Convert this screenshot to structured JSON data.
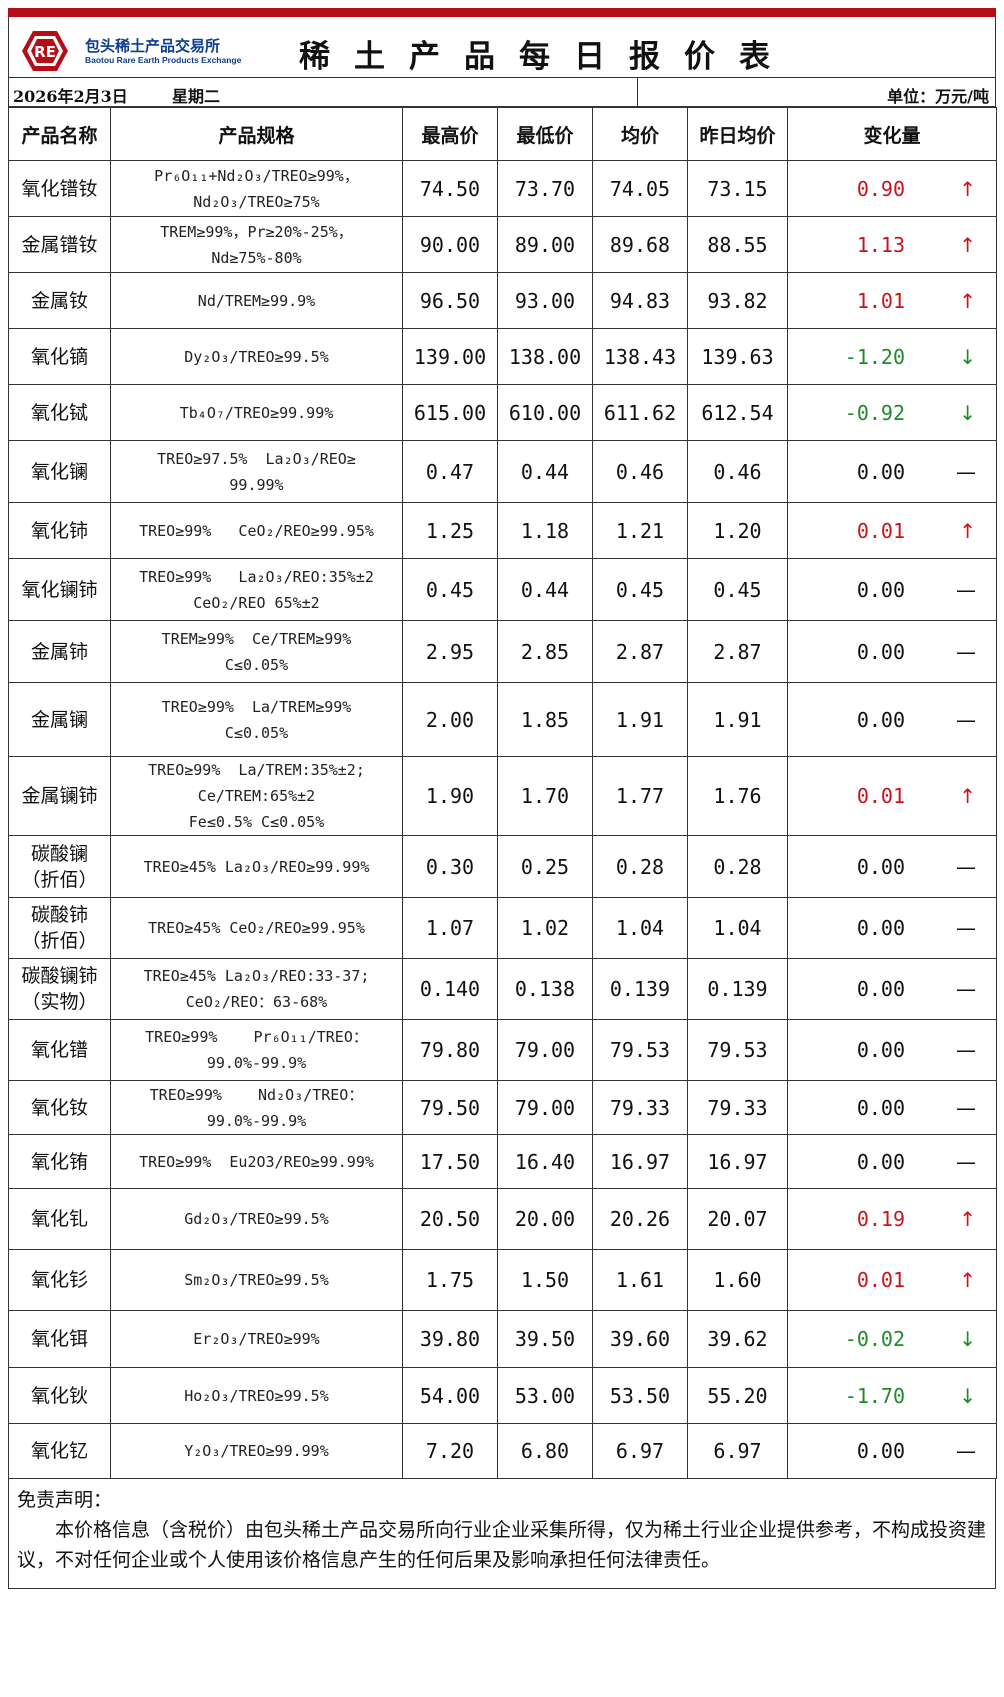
{
  "brand": {
    "logo_text": "RE",
    "name_cn": "包头稀土产品交易所",
    "name_en": "Baotou Rare Earth Products Exchange"
  },
  "title": "稀土产品每日报价表",
  "date": "2026年2月3日",
  "weekday": "星期二",
  "unit": "单位：万元/吨",
  "columns": [
    "产品名称",
    "产品规格",
    "最高价",
    "最低价",
    "均价",
    "昨日均价",
    "变化量"
  ],
  "colors": {
    "up": "#c8141c",
    "down": "#1e8a2a",
    "brand": "#b40f17",
    "brand_text": "#0f3d8c"
  },
  "rows": [
    {
      "name": [
        "氧化镨钕"
      ],
      "spec": [
        "Pr₆O₁₁+Nd₂O₃/TREO≥99%，",
        "Nd₂O₃/TREO≥75%"
      ],
      "high": "74.50",
      "low": "73.70",
      "avg": "74.05",
      "prev": "73.15",
      "change": "0.90",
      "trend": "up",
      "arrow": "↑",
      "h": 56
    },
    {
      "name": [
        "金属镨钕"
      ],
      "spec": [
        "TREM≥99%，Pr≥20%-25%，",
        "Nd≥75%-80%"
      ],
      "high": "90.00",
      "low": "89.00",
      "avg": "89.68",
      "prev": "88.55",
      "change": "1.13",
      "trend": "up",
      "arrow": "↑",
      "h": 56
    },
    {
      "name": [
        "金属钕"
      ],
      "spec": [
        "Nd/TREM≥99.9%"
      ],
      "high": "96.50",
      "low": "93.00",
      "avg": "94.83",
      "prev": "93.82",
      "change": "1.01",
      "trend": "up",
      "arrow": "↑",
      "h": 56
    },
    {
      "name": [
        "氧化镝"
      ],
      "spec": [
        "Dy₂O₃/TREO≥99.5%"
      ],
      "high": "139.00",
      "low": "138.00",
      "avg": "138.43",
      "prev": "139.63",
      "change": "-1.20",
      "trend": "down",
      "arrow": "↓",
      "h": 56
    },
    {
      "name": [
        "氧化铽"
      ],
      "spec": [
        "Tb₄O₇/TREO≥99.99%"
      ],
      "high": "615.00",
      "low": "610.00",
      "avg": "611.62",
      "prev": "612.54",
      "change": "-0.92",
      "trend": "down",
      "arrow": "↓",
      "h": 56
    },
    {
      "name": [
        "氧化镧"
      ],
      "spec": [
        "TREO≥97.5%  La₂O₃/REO≥",
        "99.99%"
      ],
      "high": "0.47",
      "low": "0.44",
      "avg": "0.46",
      "prev": "0.46",
      "change": "0.00",
      "trend": "flat",
      "arrow": "—",
      "h": 62
    },
    {
      "name": [
        "氧化铈"
      ],
      "spec": [
        "TREO≥99%   CeO₂/REO≥99.95%"
      ],
      "high": "1.25",
      "low": "1.18",
      "avg": "1.21",
      "prev": "1.20",
      "change": "0.01",
      "trend": "up",
      "arrow": "↑",
      "h": 56
    },
    {
      "name": [
        "氧化镧铈"
      ],
      "spec": [
        "TREO≥99%   La₂O₃/REO:35%±2",
        "CeO₂/REO 65%±2"
      ],
      "high": "0.45",
      "low": "0.44",
      "avg": "0.45",
      "prev": "0.45",
      "change": "0.00",
      "trend": "flat",
      "arrow": "—",
      "h": 62
    },
    {
      "name": [
        "金属铈"
      ],
      "spec": [
        "TREM≥99%  Ce/TREM≥99%",
        "C≤0.05%"
      ],
      "high": "2.95",
      "low": "2.85",
      "avg": "2.87",
      "prev": "2.87",
      "change": "0.00",
      "trend": "flat",
      "arrow": "—",
      "h": 62
    },
    {
      "name": [
        "金属镧"
      ],
      "spec": [
        "TREO≥99%  La/TREM≥99%",
        "C≤0.05%"
      ],
      "high": "2.00",
      "low": "1.85",
      "avg": "1.91",
      "prev": "1.91",
      "change": "0.00",
      "trend": "flat",
      "arrow": "—",
      "h": 74
    },
    {
      "name": [
        "金属镧铈"
      ],
      "spec": [
        "TREO≥99%  La/TREM:35%±2;",
        "Ce/TREM:65%±2",
        "Fe≤0.5% C≤0.05%"
      ],
      "high": "1.90",
      "low": "1.70",
      "avg": "1.77",
      "prev": "1.76",
      "change": "0.01",
      "trend": "up",
      "arrow": "↑",
      "h": 74
    },
    {
      "name": [
        "碳酸镧",
        "（折佰）"
      ],
      "spec": [
        "TREO≥45% La₂O₃/REO≥99.99%"
      ],
      "high": "0.30",
      "low": "0.25",
      "avg": "0.28",
      "prev": "0.28",
      "change": "0.00",
      "trend": "flat",
      "arrow": "—",
      "h": 62
    },
    {
      "name": [
        "碳酸铈",
        "（折佰）"
      ],
      "spec": [
        "TREO≥45% CeO₂/REO≥99.95%"
      ],
      "high": "1.07",
      "low": "1.02",
      "avg": "1.04",
      "prev": "1.04",
      "change": "0.00",
      "trend": "flat",
      "arrow": "—",
      "h": 61
    },
    {
      "name": [
        "碳酸镧铈",
        "（实物）"
      ],
      "spec": [
        "TREO≥45% La₂O₃/REO:33-37;",
        "CeO₂/REO：63-68%"
      ],
      "high": "0.140",
      "low": "0.138",
      "avg": "0.139",
      "prev": "0.139",
      "change": "0.00",
      "trend": "flat",
      "arrow": "—",
      "h": 61
    },
    {
      "name": [
        "氧化镨"
      ],
      "spec": [
        "TREO≥99%    Pr₆O₁₁/TREO：",
        "99.0%-99.9%"
      ],
      "high": "79.80",
      "low": "79.00",
      "avg": "79.53",
      "prev": "79.53",
      "change": "0.00",
      "trend": "flat",
      "arrow": "—",
      "h": 61
    },
    {
      "name": [
        "氧化钕"
      ],
      "spec": [
        "TREO≥99%    Nd₂O₃/TREO：",
        "99.0%-99.9%"
      ],
      "high": "79.50",
      "low": "79.00",
      "avg": "79.33",
      "prev": "79.33",
      "change": "0.00",
      "trend": "flat",
      "arrow": "—",
      "h": 54
    },
    {
      "name": [
        "氧化铕"
      ],
      "spec": [
        "TREO≥99%  Eu2O3/REO≥99.99%"
      ],
      "high": "17.50",
      "low": "16.40",
      "avg": "16.97",
      "prev": "16.97",
      "change": "0.00",
      "trend": "flat",
      "arrow": "—",
      "h": 54
    },
    {
      "name": [
        "氧化钆"
      ],
      "spec": [
        "Gd₂O₃/TREO≥99.5%"
      ],
      "high": "20.50",
      "low": "20.00",
      "avg": "20.26",
      "prev": "20.07",
      "change": "0.19",
      "trend": "up",
      "arrow": "↑",
      "h": 61
    },
    {
      "name": [
        "氧化钐"
      ],
      "spec": [
        "Sm₂O₃/TREO≥99.5%"
      ],
      "high": "1.75",
      "low": "1.50",
      "avg": "1.61",
      "prev": "1.60",
      "change": "0.01",
      "trend": "up",
      "arrow": "↑",
      "h": 61
    },
    {
      "name": [
        "氧化铒"
      ],
      "spec": [
        "Er₂O₃/TREO≥99%"
      ],
      "high": "39.80",
      "low": "39.50",
      "avg": "39.60",
      "prev": "39.62",
      "change": "-0.02",
      "trend": "down",
      "arrow": "↓",
      "h": 57
    },
    {
      "name": [
        "氧化钬"
      ],
      "spec": [
        "Ho₂O₃/TREO≥99.5%"
      ],
      "high": "54.00",
      "low": "53.00",
      "avg": "53.50",
      "prev": "55.20",
      "change": "-1.70",
      "trend": "down",
      "arrow": "↓",
      "h": 56
    },
    {
      "name": [
        "氧化钇"
      ],
      "spec": [
        "Y₂O₃/TREO≥99.99%"
      ],
      "high": "7.20",
      "low": "6.80",
      "avg": "6.97",
      "prev": "6.97",
      "change": "0.00",
      "trend": "flat",
      "arrow": "—",
      "h": 55
    }
  ],
  "disclaimer": {
    "heading": "免责声明：",
    "body": "本价格信息（含税价）由包头稀土产品交易所向行业企业采集所得，仅为稀土行业企业提供参考，不构成投资建议，不对任何企业或个人使用该价格信息产生的任何后果及影响承担任何法律责任。"
  }
}
